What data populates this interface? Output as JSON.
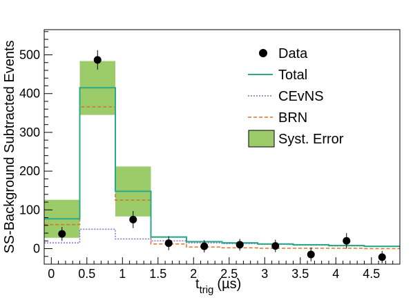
{
  "chart_data": {
    "type": "histogram",
    "xlabel": "t",
    "xlabel_sub": "trig",
    "xlabel_unit": "(µs)",
    "ylabel": "SS-Background Subtracted Events",
    "xlim": [
      -0.1,
      4.9
    ],
    "ylim": [
      -40,
      565
    ],
    "x_ticks": [
      "0",
      "0.5",
      "1",
      "1.5",
      "2",
      "2.5",
      "3",
      "3.5",
      "4",
      "4.5"
    ],
    "x_tick_values": [
      0,
      0.5,
      1,
      1.5,
      2,
      2.5,
      3,
      3.5,
      4,
      4.5
    ],
    "y_ticks": [
      "0",
      "100",
      "200",
      "300",
      "400",
      "500"
    ],
    "y_tick_values": [
      0,
      100,
      200,
      300,
      400,
      500
    ],
    "bin_edges": [
      -0.1,
      0.4,
      0.9,
      1.4,
      1.9,
      2.4,
      2.9,
      3.4,
      3.9,
      4.4,
      4.9
    ],
    "series": [
      {
        "name": "Total",
        "color": "#2aa88a",
        "style": "solid",
        "values": [
          77,
          415,
          148,
          30,
          18,
          15,
          12,
          10,
          8,
          6
        ]
      },
      {
        "name": "CEvNS",
        "color": "#7a6fd0",
        "style": "dotted",
        "values": [
          15,
          50,
          25,
          20,
          15,
          13,
          11,
          9,
          7,
          6
        ]
      },
      {
        "name": "BRN",
        "color": "#e07020",
        "style": "dashed",
        "values": [
          62,
          366,
          125,
          12,
          4,
          2,
          1,
          1,
          1,
          0
        ]
      }
    ],
    "syst_error": {
      "name": "Syst. Error",
      "fill": "#9ccc6a",
      "bins": [
        {
          "low": 28,
          "high": 126
        },
        {
          "low": 345,
          "high": 484
        },
        {
          "low": 83,
          "high": 212
        },
        {
          "low": 28,
          "high": 31
        },
        {
          "low": 16,
          "high": 19
        },
        {
          "low": 13,
          "high": 16
        },
        {
          "low": 10,
          "high": 13
        },
        {
          "low": 8,
          "high": 11
        },
        {
          "low": 6,
          "high": 9
        },
        {
          "low": 4,
          "high": 7
        }
      ]
    },
    "data_points": {
      "name": "Data",
      "x": [
        0.15,
        0.65,
        1.15,
        1.65,
        2.15,
        2.65,
        3.15,
        3.65,
        4.15,
        4.65
      ],
      "y": [
        38,
        487,
        75,
        14,
        6,
        10,
        7,
        -15,
        20,
        -22
      ],
      "err": [
        18,
        25,
        22,
        18,
        16,
        15,
        16,
        18,
        20,
        16
      ]
    },
    "legend": {
      "placement": "top-right",
      "entries": [
        {
          "label": "Data",
          "kind": "marker"
        },
        {
          "label": "Total",
          "kind": "line",
          "series": "Total"
        },
        {
          "label": "CEvNS",
          "kind": "line",
          "series": "CEvNS"
        },
        {
          "label": "BRN",
          "kind": "line",
          "series": "BRN"
        },
        {
          "label": "Syst. Error",
          "kind": "box"
        }
      ]
    }
  }
}
